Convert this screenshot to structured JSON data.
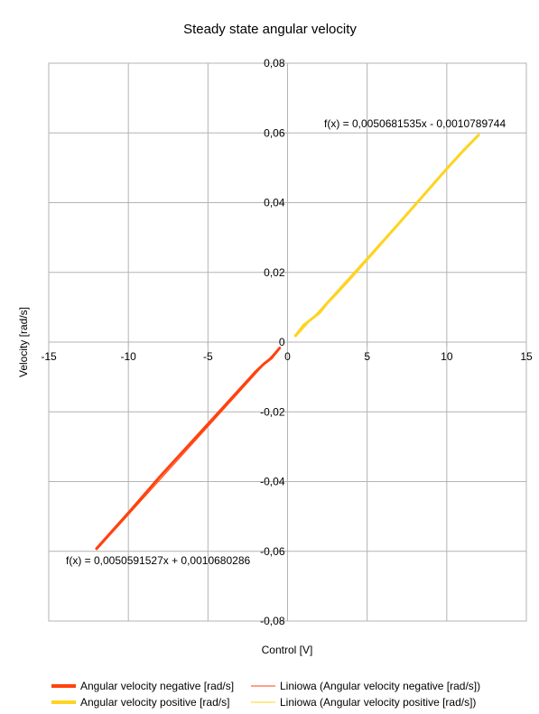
{
  "chart_data": {
    "type": "scatter",
    "title": "Steady state angular velocity",
    "xlabel": "Control [V]",
    "ylabel": "Velocity [rad/s]",
    "xlim": [
      -15,
      15
    ],
    "ylim": [
      -0.08,
      0.08
    ],
    "x_ticks": [
      -15,
      -10,
      -5,
      0,
      5,
      10,
      15
    ],
    "x_tick_labels": [
      "-15",
      "-10",
      "-5",
      "0",
      "5",
      "10",
      "15"
    ],
    "y_ticks": [
      0.08,
      0.06,
      0.04,
      0.02,
      0,
      -0.02,
      -0.04,
      -0.06,
      -0.08
    ],
    "y_tick_labels": [
      "0,08",
      "0,06",
      "0,04",
      "0,02",
      "0",
      "-0,02",
      "-0,04",
      "-0,06",
      "-0,08"
    ],
    "grid": true,
    "legend_position": "bottom",
    "series": [
      {
        "name": "Angular velocity negative [rad/s]",
        "color": "#ff420e",
        "x": [
          -12,
          -10,
          -8,
          -6,
          -4,
          -3,
          -2,
          -1.5,
          -1,
          -0.5
        ],
        "y": [
          -0.0592,
          -0.049,
          -0.0385,
          -0.0285,
          -0.0185,
          -0.0135,
          -0.0085,
          -0.0063,
          -0.0045,
          -0.0017
        ]
      },
      {
        "name": "Angular velocity positive [rad/s]",
        "color": "#ffd320",
        "x": [
          0.5,
          1,
          1.5,
          2,
          2.5,
          3,
          4,
          6,
          8,
          10,
          11,
          12
        ],
        "y": [
          0.0018,
          0.0048,
          0.0066,
          0.0084,
          0.0113,
          0.0136,
          0.0186,
          0.0289,
          0.0393,
          0.0497,
          0.0547,
          0.0594
        ]
      }
    ],
    "trendlines": [
      {
        "name": "Liniowa (Angular velocity negative [rad/s])",
        "color": "#ff420e",
        "slope": 0.0050591527,
        "intercept": 0.0010680286,
        "x_range": [
          -12,
          -0.5
        ],
        "equation": "f(x) = 0,0050591527x + 0,0010680286"
      },
      {
        "name": "Liniowa (Angular velocity positive [rad/s])",
        "color": "#ffd320",
        "slope": 0.0050681535,
        "intercept": -0.0010789744,
        "x_range": [
          0.5,
          12
        ],
        "equation": "f(x) = 0,0050681535x - 0,0010789744"
      }
    ]
  }
}
